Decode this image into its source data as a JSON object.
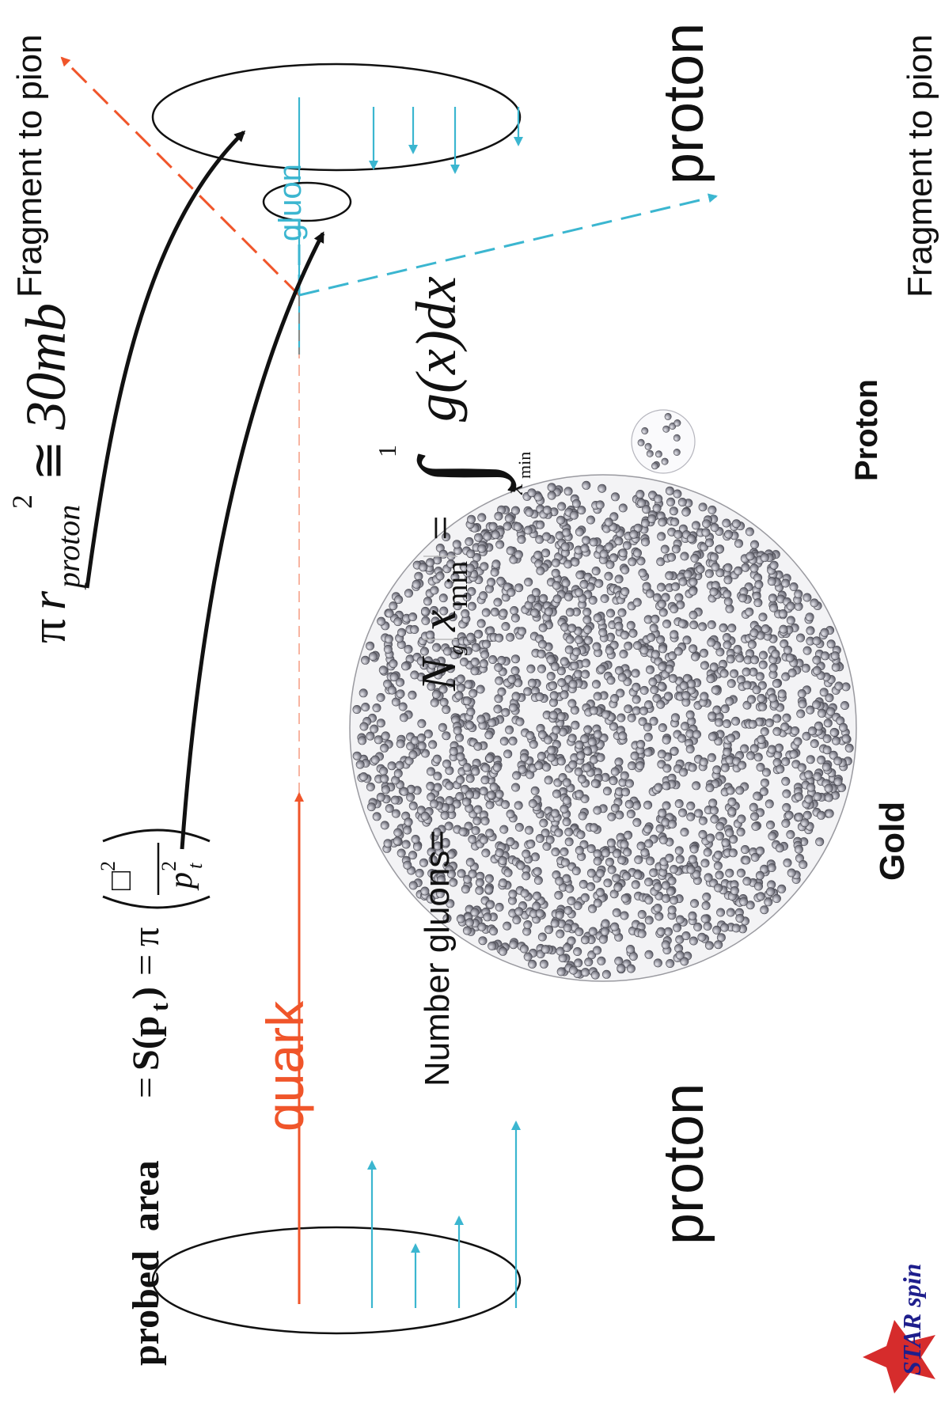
{
  "labels": {
    "fragment_top": "Fragment to pion",
    "fragment_bottom": "Fragment to pion",
    "quark": "quark",
    "gluon": "gluon",
    "proton_left": "proton",
    "proton_right": "proton",
    "gold": "Gold",
    "proton_bold": "Proton",
    "number_gluons": "Number gluons="
  },
  "formulas": {
    "probed_area_prefix": "probed  area",
    "probed_area_eq1": "=",
    "probed_area_S": "S(p",
    "probed_area_t": "t",
    "probed_area_close": ")",
    "probed_area_eq2": "=",
    "probed_area_pi": "π",
    "fraction_num_sym": "□",
    "fraction_num_exp": "2",
    "fraction_den_p": "p",
    "fraction_den_exp": "2",
    "fraction_den_sub": "t",
    "area_pi": "π",
    "area_r": "r",
    "area_sub": "proton",
    "area_exp": "2",
    "area_approx": "≅",
    "area_value": "30mb",
    "N": "N",
    "N_sub": "g",
    "N_x": "x",
    "N_x_sub": "min",
    "N_eq": "=",
    "int_upper": "1",
    "int_sign": "∫",
    "int_lower_x": "x",
    "int_lower_sub": "min",
    "integrand": "g(x)dx"
  },
  "logo": {
    "text": "STAR spin"
  },
  "colors": {
    "quark": "#f0552a",
    "gluon": "#3bb6d0",
    "ink": "#111111",
    "gluon_ball": "#8d8d97"
  }
}
